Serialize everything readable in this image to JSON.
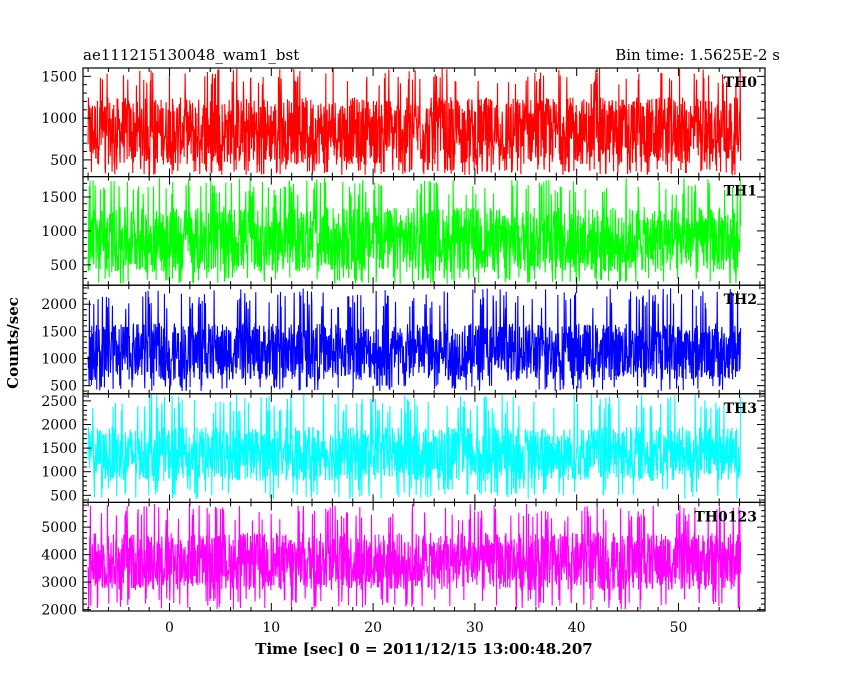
{
  "header": {
    "left": "ae111215130048_wam1_bst",
    "right": "Bin time: 1.5625E-2 s"
  },
  "chart_data": {
    "type": "line",
    "xlabel": "Time [sec] 0 = 2011/12/15 13:00:48.207",
    "ylabel": "Counts/sec",
    "xlim": [
      -8.5,
      58.5
    ],
    "x_range": [
      -8,
      56.1
    ],
    "x_ticks": [
      0,
      10,
      20,
      30,
      40,
      50
    ],
    "grid": false,
    "panels": [
      {
        "name": "TH0",
        "color": "#ff0000",
        "ylim": [
          300,
          1600
        ],
        "y_ticks": [
          500,
          1000,
          1500
        ],
        "min": 320,
        "max": 1600,
        "base": 440,
        "top": 1250
      },
      {
        "name": "TH1",
        "color": "#00ff00",
        "ylim": [
          200,
          1800
        ],
        "y_ticks": [
          500,
          1000,
          1500
        ],
        "min": 220,
        "max": 1780,
        "base": 380,
        "top": 1350
      },
      {
        "name": "TH2",
        "color": "#0000ff",
        "ylim": [
          350,
          2350
        ],
        "y_ticks": [
          500,
          1000,
          1500,
          2000
        ],
        "min": 400,
        "max": 2300,
        "base": 600,
        "top": 1650
      },
      {
        "name": "TH3",
        "color": "#00ffff",
        "ylim": [
          350,
          2650
        ],
        "y_ticks": [
          500,
          1000,
          1500,
          2000,
          2500
        ],
        "min": 420,
        "max": 2650,
        "base": 800,
        "top": 1950
      },
      {
        "name": "TH0123",
        "color": "#ff00ff",
        "ylim": [
          1950,
          5900
        ],
        "y_ticks": [
          2000,
          3000,
          4000,
          5000
        ],
        "min": 2000,
        "max": 5850,
        "base": 2700,
        "top": 4800
      }
    ]
  }
}
